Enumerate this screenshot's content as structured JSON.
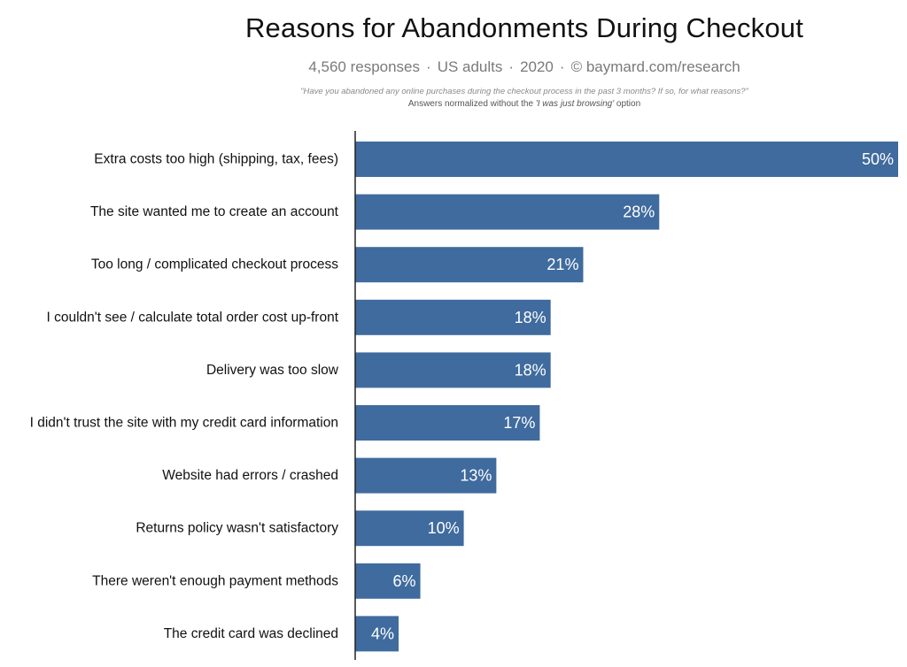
{
  "title": "Reasons for Abandonments During Checkout",
  "subtitle": {
    "responses": "4,560 responses",
    "population": "US adults",
    "year": "2020",
    "copyright": "©",
    "source": "baymard.com/research",
    "separator": "·"
  },
  "question": "\"Have you abandoned any online purchases during the checkout process in the past 3 months? If so, for what reasons?\"",
  "note": {
    "prefix": "Answers normalized without the ",
    "emphasis": "'I was just browsing'",
    "suffix": " option"
  },
  "colors": {
    "bar": "#3f6b9e",
    "label_in_bar": "#ffffff",
    "axis": "#222222"
  },
  "chart_data": {
    "type": "bar",
    "orientation": "horizontal",
    "categories": [
      "Extra costs too high (shipping, tax, fees)",
      "The site wanted me to create an account",
      "Too long / complicated checkout process",
      "I couldn't see / calculate total order cost up-front",
      "Delivery was too slow",
      "I didn't trust the site with my credit card information",
      "Website had errors / crashed",
      "Returns policy wasn't satisfactory",
      "There weren't enough payment methods",
      "The credit card was declined"
    ],
    "values": [
      50,
      28,
      21,
      18,
      18,
      17,
      13,
      10,
      6,
      4
    ],
    "value_labels": [
      "50%",
      "28%",
      "21%",
      "18%",
      "18%",
      "17%",
      "13%",
      "10%",
      "6%",
      "4%"
    ],
    "xlim": [
      0,
      50
    ],
    "grid": false,
    "legend": "none"
  }
}
